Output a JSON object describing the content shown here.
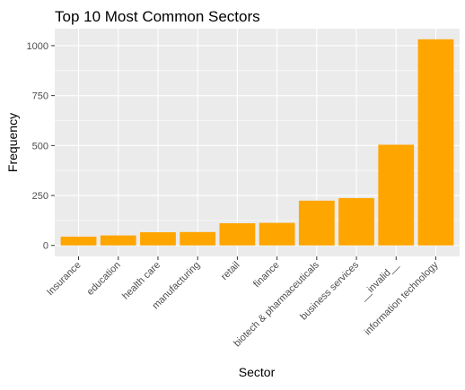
{
  "chart_data": {
    "type": "bar",
    "title": "Top 10 Most Common Sectors",
    "xlabel": "Sector",
    "ylabel": "Frequency",
    "categories": [
      "Insurance",
      "education",
      "health care",
      "manufacturing",
      "retail",
      "finance",
      "biotech & pharmaceuticals",
      "business services",
      "__invalid__",
      "information technology"
    ],
    "values": [
      44,
      50,
      66,
      67,
      111,
      113,
      224,
      237,
      504,
      1032
    ],
    "ylim": [
      -55,
      1085
    ],
    "yticks": [
      0,
      250,
      500,
      750,
      1000
    ],
    "grid": true,
    "colors": {
      "bar": "#FFA500",
      "panel": "#EBEBEB",
      "grid_major": "#FFFFFF"
    }
  }
}
